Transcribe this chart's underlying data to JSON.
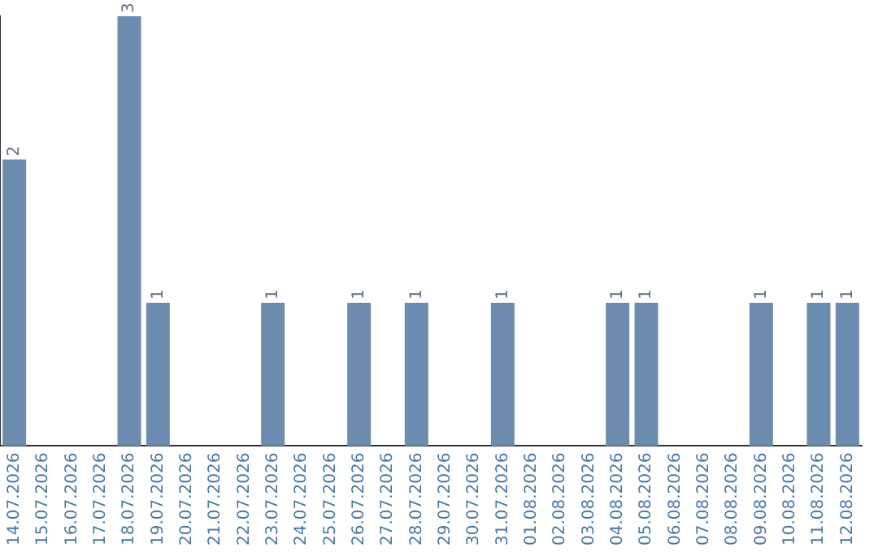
{
  "chart_data": {
    "type": "bar",
    "categories": [
      "14.07.2026",
      "15.07.2026",
      "16.07.2026",
      "17.07.2026",
      "18.07.2026",
      "19.07.2026",
      "20.07.2026",
      "21.07.2026",
      "22.07.2026",
      "23.07.2026",
      "24.07.2026",
      "25.07.2026",
      "26.07.2026",
      "27.07.2026",
      "28.07.2026",
      "29.07.2026",
      "30.07.2026",
      "31.07.2026",
      "01.08.2026",
      "02.08.2026",
      "03.08.2026",
      "04.08.2026",
      "05.08.2026",
      "06.08.2026",
      "07.08.2026",
      "08.08.2026",
      "09.08.2026",
      "10.08.2026",
      "11.08.2026",
      "12.08.2026"
    ],
    "values": [
      2,
      0,
      0,
      0,
      3,
      1,
      0,
      0,
      0,
      1,
      0,
      0,
      1,
      0,
      1,
      0,
      0,
      1,
      0,
      0,
      0,
      1,
      1,
      0,
      0,
      0,
      1,
      0,
      1,
      1
    ],
    "value_labels": [
      "2",
      null,
      null,
      null,
      "3",
      "1",
      null,
      null,
      null,
      "1",
      null,
      null,
      "1",
      null,
      "1",
      null,
      null,
      "1",
      null,
      null,
      null,
      "1",
      "1",
      null,
      null,
      null,
      "1",
      null,
      "1",
      "1"
    ],
    "color": "#6b8cae",
    "ylim": [
      0,
      3
    ],
    "tick_labels": "x",
    "grid": false,
    "legend": false
  }
}
